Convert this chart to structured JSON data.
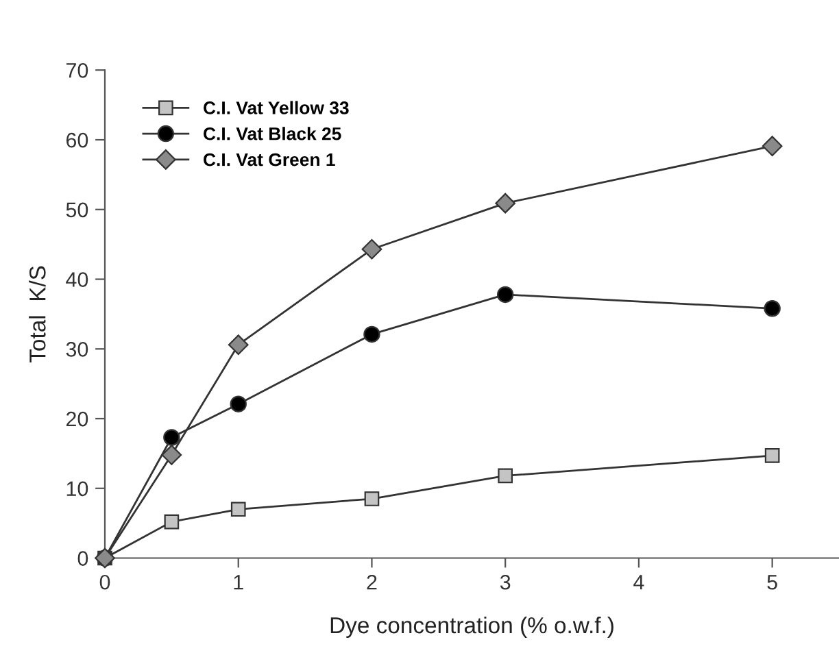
{
  "chart_data": {
    "type": "line",
    "xlabel": "Dye concentration (% o.w.f.)",
    "ylabel": "Total  K/S",
    "x": [
      0,
      0.5,
      1,
      2,
      3,
      5
    ],
    "series": [
      {
        "name": "C.I. Vat Yellow 33",
        "color": "#c4c4c4",
        "marker": "square",
        "values": [
          0,
          5.2,
          7.0,
          8.5,
          11.8,
          14.7
        ]
      },
      {
        "name": "C.I. Vat Black 25",
        "color": "#000000",
        "marker": "circle",
        "values": [
          0,
          17.3,
          22.1,
          32.1,
          37.8,
          35.8
        ]
      },
      {
        "name": "C.I. Vat Green 1",
        "color": "#8a8a8a",
        "marker": "diamond",
        "values": [
          0,
          14.8,
          30.6,
          44.3,
          50.9,
          59.1
        ]
      }
    ],
    "xlim": [
      0,
      5.5
    ],
    "xticks": [
      0,
      1,
      2,
      3,
      4,
      5
    ],
    "ylim": [
      0,
      70
    ],
    "yticks": [
      0,
      10,
      20,
      30,
      40,
      50,
      60,
      70
    ],
    "grid": false,
    "legend": "top left",
    "line_style": "solid"
  }
}
